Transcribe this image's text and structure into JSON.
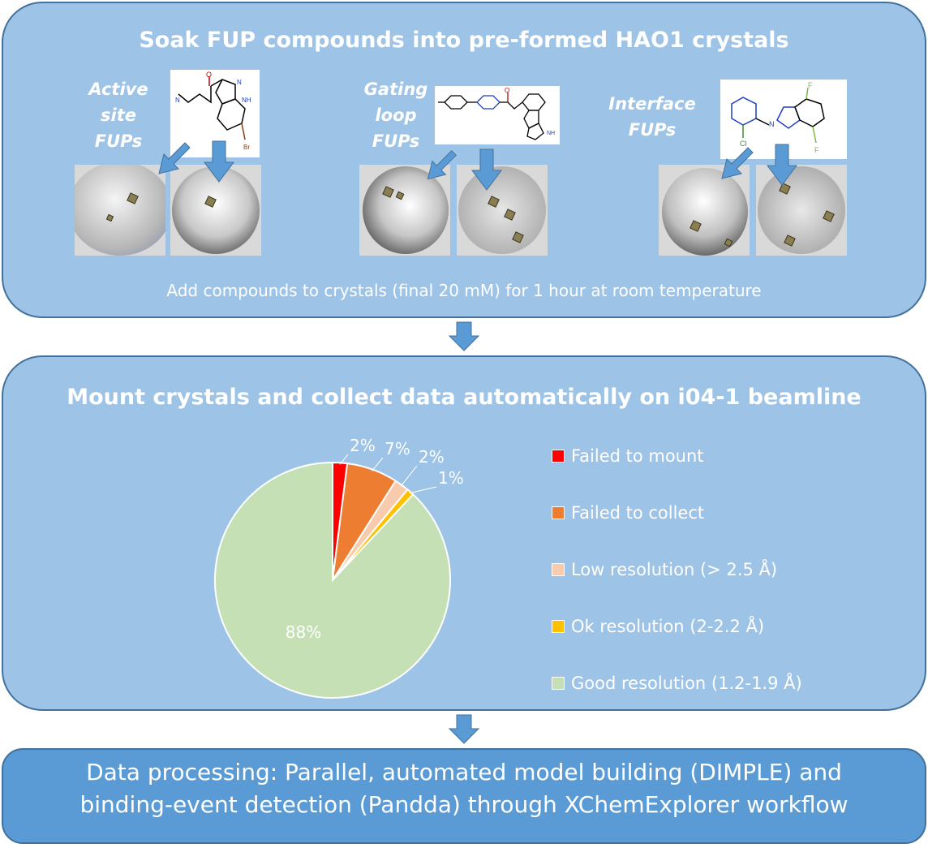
{
  "step1": {
    "title": "Soak FUP compounds into pre-formed HAO1 crystals",
    "caption": "Add compounds to crystals (final 20 mM) for 1 hour at room temperature",
    "groups": [
      {
        "label_lines": [
          "Active",
          "site",
          "FUPs"
        ]
      },
      {
        "label_lines": [
          "Gating",
          "loop",
          "FUPs"
        ]
      },
      {
        "label_lines": [
          "Interface",
          "FUPs"
        ]
      }
    ]
  },
  "step2": {
    "title": "Mount crystals and collect data automatically on i04-1 beamline"
  },
  "step3": {
    "line1": "Data processing: Parallel, automated model building (DIMPLE) and",
    "line2": "binding-event detection (Pandda) through XChemExplorer workflow"
  },
  "colors": {
    "panel": "#9dc3e6",
    "panel_border": "#41719c",
    "final_panel": "#5b9bd5",
    "arrow": "#5b9bd5"
  },
  "chart_data": {
    "type": "pie",
    "categories": [
      "Failed to mount",
      "Failed to collect",
      "Low resolution (> 2.5 Å)",
      "Ok resolution (2-2.2 Å)",
      "Good resolution (1.2-1.9 Å)"
    ],
    "values": [
      2,
      7,
      2,
      1,
      88
    ],
    "data_labels": [
      "2%",
      "7%",
      "2%",
      "1%",
      "88%"
    ],
    "colors": [
      "#ff0000",
      "#ed7d31",
      "#f8cbad",
      "#ffc000",
      "#c5e0b4"
    ],
    "legend_position": "right"
  }
}
